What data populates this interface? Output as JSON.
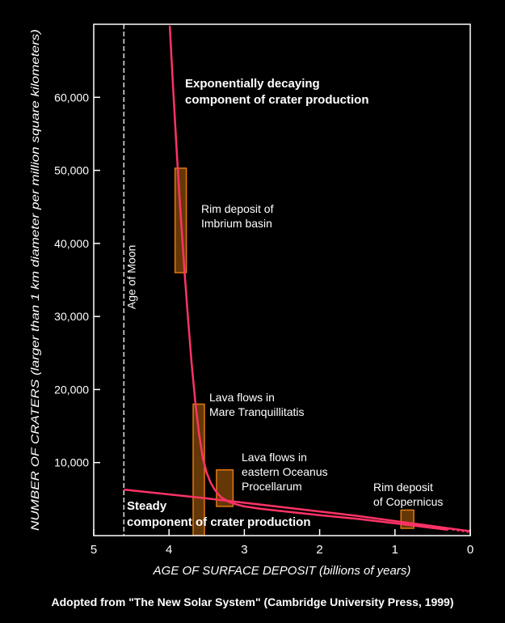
{
  "chart_data": {
    "type": "line",
    "title": "",
    "xlabel": "AGE OF SURFACE DEPOSIT (billions of years)",
    "ylabel": "NUMBER OF CRATERS (larger than 1 km diameter per million square kilometers)",
    "xlim": [
      5,
      0
    ],
    "ylim": [
      0,
      70000
    ],
    "x_ticks": [
      "5",
      "4",
      "3",
      "2",
      "1",
      "0"
    ],
    "x_tick_values": [
      5,
      4,
      3,
      2,
      1,
      0
    ],
    "y_ticks": [
      "10,000",
      "20,000",
      "30,000",
      "40,000",
      "50,000",
      "60,000"
    ],
    "y_tick_values": [
      10000,
      20000,
      30000,
      40000,
      50000,
      60000
    ],
    "grid": false,
    "curve_color": "#ff3366",
    "deposit_color": "#e07a10",
    "series": [
      {
        "name": "Exponentially decaying component of crater production",
        "x": [
          3.99,
          3.95,
          3.9,
          3.85,
          3.8,
          3.75,
          3.7,
          3.65,
          3.6,
          3.55,
          3.5,
          3.45,
          3.4,
          3.35,
          3.3,
          3.2,
          3.1,
          3.0,
          2.8,
          2.5,
          2.0,
          1.5,
          1.0,
          0.5,
          0.3
        ],
        "y": [
          69800,
          62000,
          53000,
          44500,
          37000,
          30000,
          23500,
          18200,
          13800,
          10600,
          8600,
          7300,
          6400,
          5700,
          5200,
          4600,
          4250,
          4000,
          3700,
          3350,
          2800,
          2300,
          1700,
          1050,
          800
        ]
      },
      {
        "name": "Steady component of crater production",
        "x": [
          4.6,
          3.5,
          2.5,
          1.5,
          0.5,
          0.0
        ],
        "y": [
          6300,
          5100,
          3900,
          2700,
          1300,
          600
        ]
      }
    ],
    "deposits": [
      {
        "label": [
          "Rim deposit of",
          "Imbrium basin"
        ],
        "age_range": [
          3.77,
          3.92
        ],
        "craters_range": [
          36000,
          50300
        ]
      },
      {
        "label": [
          "Lava flows in",
          "Mare Tranquillitatis"
        ],
        "age_range": [
          3.53,
          3.68
        ],
        "craters_range": [
          0,
          18000
        ]
      },
      {
        "label": [
          "Lava flows in",
          "eastern Oceanus",
          "Procellarum"
        ],
        "age_range": [
          3.15,
          3.37
        ],
        "craters_range": [
          4000,
          9000
        ]
      },
      {
        "label": [
          "Rim deposit",
          "of Copernicus"
        ],
        "age_range": [
          0.75,
          0.92
        ],
        "craters_range": [
          1000,
          3500
        ]
      }
    ],
    "annotations": [
      {
        "text": [
          "Exponentially decaying",
          "component of crater production"
        ]
      },
      {
        "text": [
          "Steady",
          "component of crater production"
        ]
      },
      {
        "text": [
          "Age of Moon"
        ],
        "x": 4.6
      }
    ]
  },
  "footer": "Adopted from \"The New Solar System\" (Cambridge University Press,  1999)"
}
